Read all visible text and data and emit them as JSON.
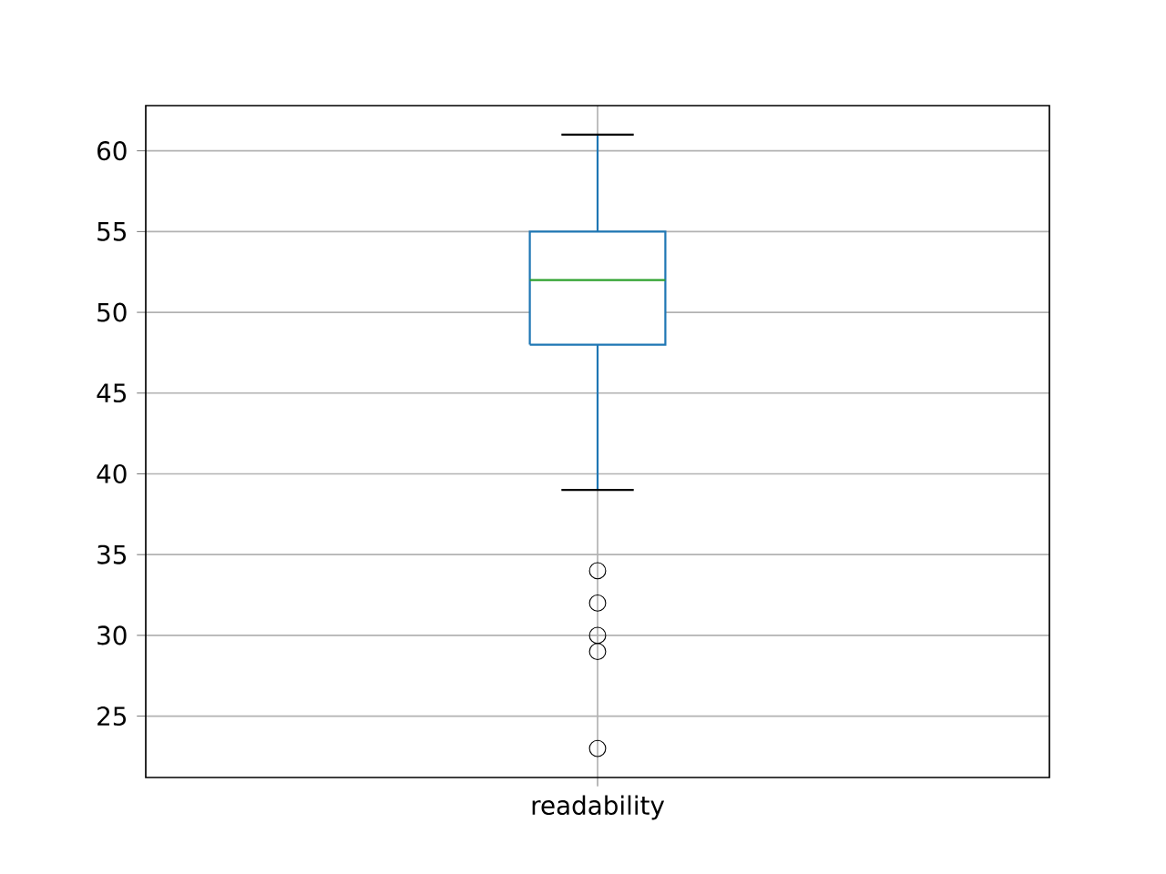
{
  "chart_data": {
    "type": "box",
    "categories": [
      "readability"
    ],
    "boxes": [
      {
        "low": 39,
        "q1": 48,
        "median": 52,
        "q3": 55,
        "high": 61,
        "outliers": [
          34,
          32,
          30,
          29,
          23
        ]
      }
    ],
    "color": "#1f77b4",
    "ylim": [
      21.2,
      62.8
    ],
    "yticks": [
      25,
      30,
      35,
      40,
      45,
      50,
      55,
      60
    ],
    "grid": true,
    "marker": "circle"
  }
}
